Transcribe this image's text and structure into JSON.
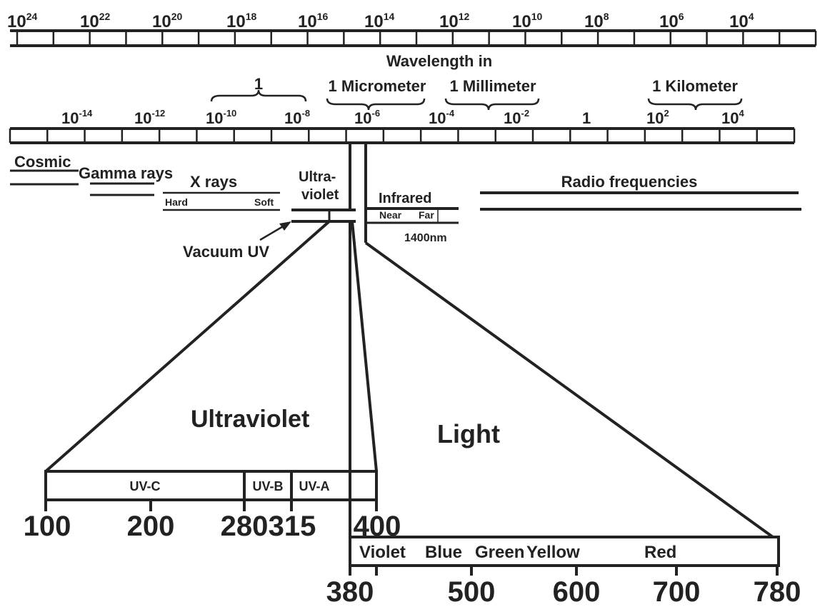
{
  "frequency_scale": {
    "labels": [
      {
        "base": "10",
        "exp": "24"
      },
      {
        "base": "10",
        "exp": "22"
      },
      {
        "base": "10",
        "exp": "20"
      },
      {
        "base": "10",
        "exp": "18"
      },
      {
        "base": "10",
        "exp": "16"
      },
      {
        "base": "10",
        "exp": "14"
      },
      {
        "base": "10",
        "exp": "12"
      },
      {
        "base": "10",
        "exp": "10"
      },
      {
        "base": "10",
        "exp": "8"
      },
      {
        "base": "10",
        "exp": "6"
      },
      {
        "base": "10",
        "exp": "4"
      }
    ]
  },
  "wavelength_scale": {
    "title": "Wavelength in",
    "units": [
      "1",
      "1 Micrometer",
      "1 Millimeter",
      "1 Kilometer"
    ],
    "labels": [
      {
        "base": "10",
        "exp": "-14"
      },
      {
        "base": "10",
        "exp": "-12"
      },
      {
        "base": "10",
        "exp": "-10"
      },
      {
        "base": "10",
        "exp": "-8"
      },
      {
        "base": "10",
        "exp": "-6"
      },
      {
        "base": "10",
        "exp": "-4"
      },
      {
        "base": "10",
        "exp": "-2"
      },
      {
        "base": "1",
        "exp": ""
      },
      {
        "base": "10",
        "exp": "2"
      },
      {
        "base": "10",
        "exp": "4"
      }
    ]
  },
  "bands": {
    "cosmic": "Cosmic",
    "gamma": "Gamma rays",
    "xrays": "X rays",
    "hard": "Hard",
    "soft": "Soft",
    "ultra_line1": "Ultra-",
    "ultra_line2": "violet",
    "infrared": "Infrared",
    "near": "Near",
    "far": "Far",
    "ir_boundary": "1400nm",
    "radio": "Radio frequencies",
    "vacuum_uv": "Vacuum UV"
  },
  "regions": {
    "ultraviolet": "Ultraviolet",
    "light": "Light"
  },
  "uv_bands": [
    "UV-C",
    "UV-B",
    "UV-A"
  ],
  "uv_ticks": [
    "100",
    "200",
    "280",
    "315",
    "400"
  ],
  "visible_colors": [
    "Violet",
    "Blue",
    "Green",
    "Yellow",
    "Red"
  ],
  "visible_ticks": [
    "380",
    "500",
    "600",
    "700",
    "780"
  ]
}
